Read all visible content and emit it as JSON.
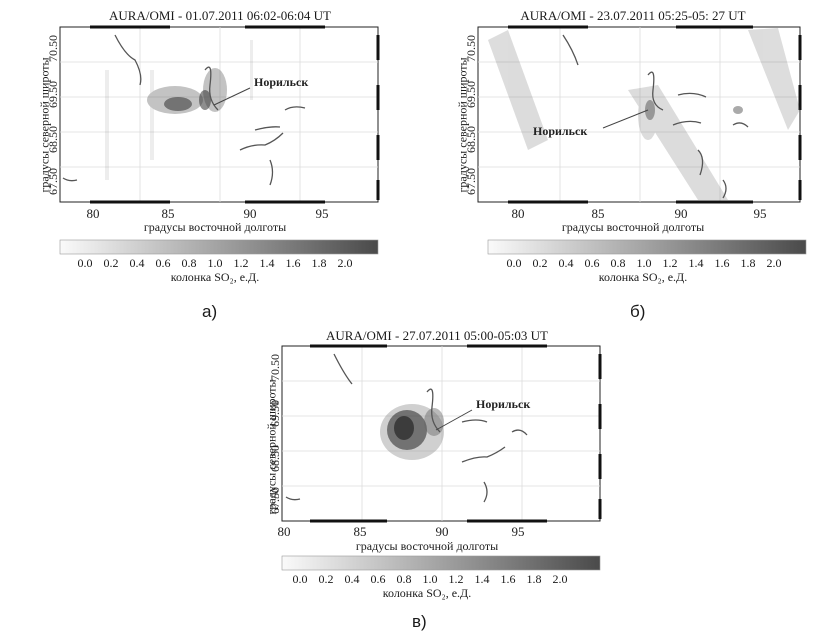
{
  "figure": {
    "panels": [
      {
        "id": "a",
        "title": "AURA/OMI - 01.07.2011 06:02-06:04 UT",
        "x_ticks": [
          "80",
          "85",
          "90",
          "95"
        ],
        "y_ticks": [
          "67.50",
          "68.50",
          "69.50",
          "70.50"
        ],
        "xlabel": "градусы восточной долготы",
        "ylabel": "градусы северной широты",
        "city_label": "Норильск",
        "colorbar_ticks": [
          "0.0",
          "0.2",
          "0.4",
          "0.6",
          "0.8",
          "1.0",
          "1.2",
          "1.4",
          "1.6",
          "1.8",
          "2.0"
        ],
        "colorbar_label": "колонка SO₂, е.Д.",
        "letter": "а)"
      },
      {
        "id": "b",
        "title": "AURA/OMI - 23.07.2011 05:25-05: 27 UT",
        "x_ticks": [
          "80",
          "85",
          "90",
          "95"
        ],
        "y_ticks": [
          "67.50",
          "68.50",
          "69.50",
          "70.50"
        ],
        "xlabel": "градусы восточной долготы",
        "ylabel": "градусы северной широты",
        "city_label": "Норильск",
        "colorbar_ticks": [
          "0.0",
          "0.2",
          "0.4",
          "0.6",
          "0.8",
          "1.0",
          "1.2",
          "1.4",
          "1.6",
          "1.8",
          "2.0"
        ],
        "colorbar_label": "колонка SO₂, е.Д.",
        "letter": "б)"
      },
      {
        "id": "c",
        "title": "AURA/OMI - 27.07.2011 05:00-05:03 UT",
        "x_ticks": [
          "80",
          "85",
          "90",
          "95"
        ],
        "y_ticks": [
          "67.50",
          "68.50",
          "69.50",
          "70.50"
        ],
        "xlabel": "градусы восточной долготы",
        "ylabel": "градусы северной широты",
        "city_label": "Норильск",
        "colorbar_ticks": [
          "0.0",
          "0.2",
          "0.4",
          "0.6",
          "0.8",
          "1.0",
          "1.2",
          "1.4",
          "1.6",
          "1.8",
          "2.0"
        ],
        "colorbar_label": "колонка SO₂, е.Д.",
        "letter": "в)"
      }
    ],
    "colors": {
      "frame": "#222222",
      "grid": "#d8d8d8",
      "plume": "#3a3a3a",
      "river": "#555555"
    }
  }
}
